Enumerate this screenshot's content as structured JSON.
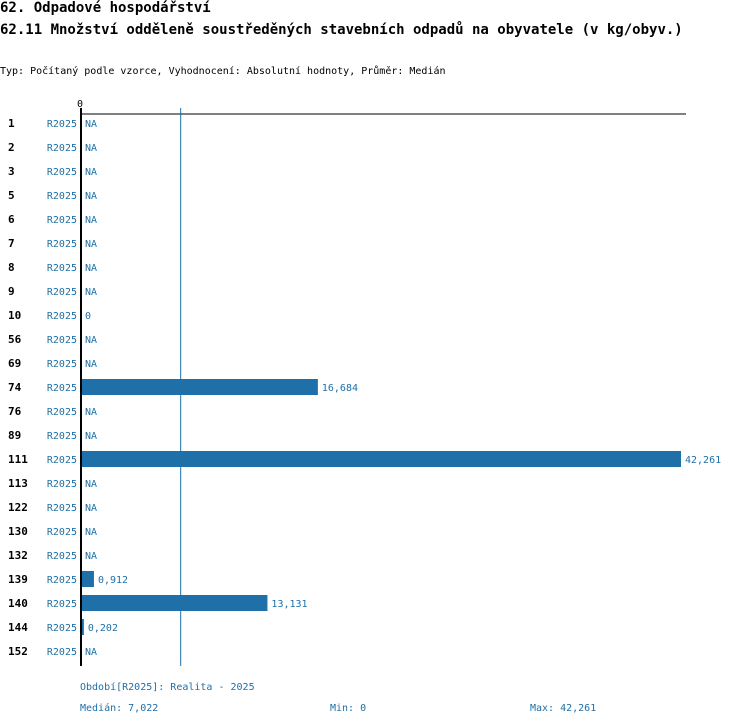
{
  "header": {
    "title": "62. Odpadové hospodářství",
    "subtitle": "62.11 Množství odděleně soustředěných stavebních odpadů na obyvatele (v kg/obyv.)",
    "type_line": "Typ: Počítaný podle vzorce, Vyhodnocení: Absolutní hodnoty, Průměr: Medián"
  },
  "colors": {
    "bar": "#1f6fa8",
    "text_blue": "#1f6fa8",
    "axis": "#000000"
  },
  "chart_data": {
    "type": "bar",
    "orientation": "horizontal",
    "axis_tick_label": "0",
    "xlim": [
      0,
      42.261
    ],
    "median_line": 7.022,
    "period_label": "R2025",
    "rows": [
      {
        "category": "1",
        "period": "R2025",
        "value": null,
        "label": "NA"
      },
      {
        "category": "2",
        "period": "R2025",
        "value": null,
        "label": "NA"
      },
      {
        "category": "3",
        "period": "R2025",
        "value": null,
        "label": "NA"
      },
      {
        "category": "5",
        "period": "R2025",
        "value": null,
        "label": "NA"
      },
      {
        "category": "6",
        "period": "R2025",
        "value": null,
        "label": "NA"
      },
      {
        "category": "7",
        "period": "R2025",
        "value": null,
        "label": "NA"
      },
      {
        "category": "8",
        "period": "R2025",
        "value": null,
        "label": "NA"
      },
      {
        "category": "9",
        "period": "R2025",
        "value": null,
        "label": "NA"
      },
      {
        "category": "10",
        "period": "R2025",
        "value": 0,
        "label": "0"
      },
      {
        "category": "56",
        "period": "R2025",
        "value": null,
        "label": "NA"
      },
      {
        "category": "69",
        "period": "R2025",
        "value": null,
        "label": "NA"
      },
      {
        "category": "74",
        "period": "R2025",
        "value": 16.684,
        "label": "16,684"
      },
      {
        "category": "76",
        "period": "R2025",
        "value": null,
        "label": "NA"
      },
      {
        "category": "89",
        "period": "R2025",
        "value": null,
        "label": "NA"
      },
      {
        "category": "111",
        "period": "R2025",
        "value": 42.261,
        "label": "42,261"
      },
      {
        "category": "113",
        "period": "R2025",
        "value": null,
        "label": "NA"
      },
      {
        "category": "122",
        "period": "R2025",
        "value": null,
        "label": "NA"
      },
      {
        "category": "130",
        "period": "R2025",
        "value": null,
        "label": "NA"
      },
      {
        "category": "132",
        "period": "R2025",
        "value": null,
        "label": "NA"
      },
      {
        "category": "139",
        "period": "R2025",
        "value": 0.912,
        "label": "0,912"
      },
      {
        "category": "140",
        "period": "R2025",
        "value": 13.131,
        "label": "13,131"
      },
      {
        "category": "144",
        "period": "R2025",
        "value": 0.202,
        "label": "0,202"
      },
      {
        "category": "152",
        "period": "R2025",
        "value": null,
        "label": "NA"
      }
    ]
  },
  "footer": {
    "period": "Období[R2025]: Realita - 2025",
    "median": "Medián: 7,022",
    "min": "Min: 0",
    "max": "Max: 42,261"
  }
}
